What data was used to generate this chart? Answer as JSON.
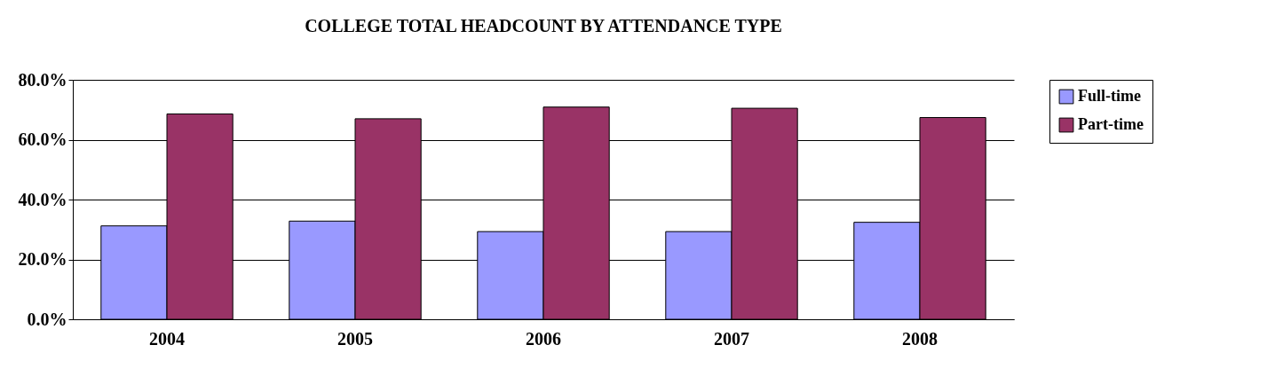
{
  "chart_data": {
    "type": "bar",
    "title": "COLLEGE TOTAL HEADCOUNT BY ATTENDANCE TYPE",
    "categories": [
      "2004",
      "2005",
      "2006",
      "2007",
      "2008"
    ],
    "series": [
      {
        "name": "Full-time",
        "color": "#9999ff",
        "values": [
          31.2,
          32.8,
          29.3,
          29.3,
          32.4
        ]
      },
      {
        "name": "Part-time",
        "color": "#993366",
        "values": [
          68.6,
          67.0,
          70.9,
          70.5,
          67.4
        ]
      }
    ],
    "ylim": [
      0,
      80
    ],
    "yticks": [
      {
        "value": 0,
        "label": "0.0%"
      },
      {
        "value": 20,
        "label": "20.0%"
      },
      {
        "value": 40,
        "label": "40.0%"
      },
      {
        "value": 60,
        "label": "60.0%"
      },
      {
        "value": 80,
        "label": "80.0%"
      }
    ],
    "grid": "y",
    "legend": "right"
  }
}
